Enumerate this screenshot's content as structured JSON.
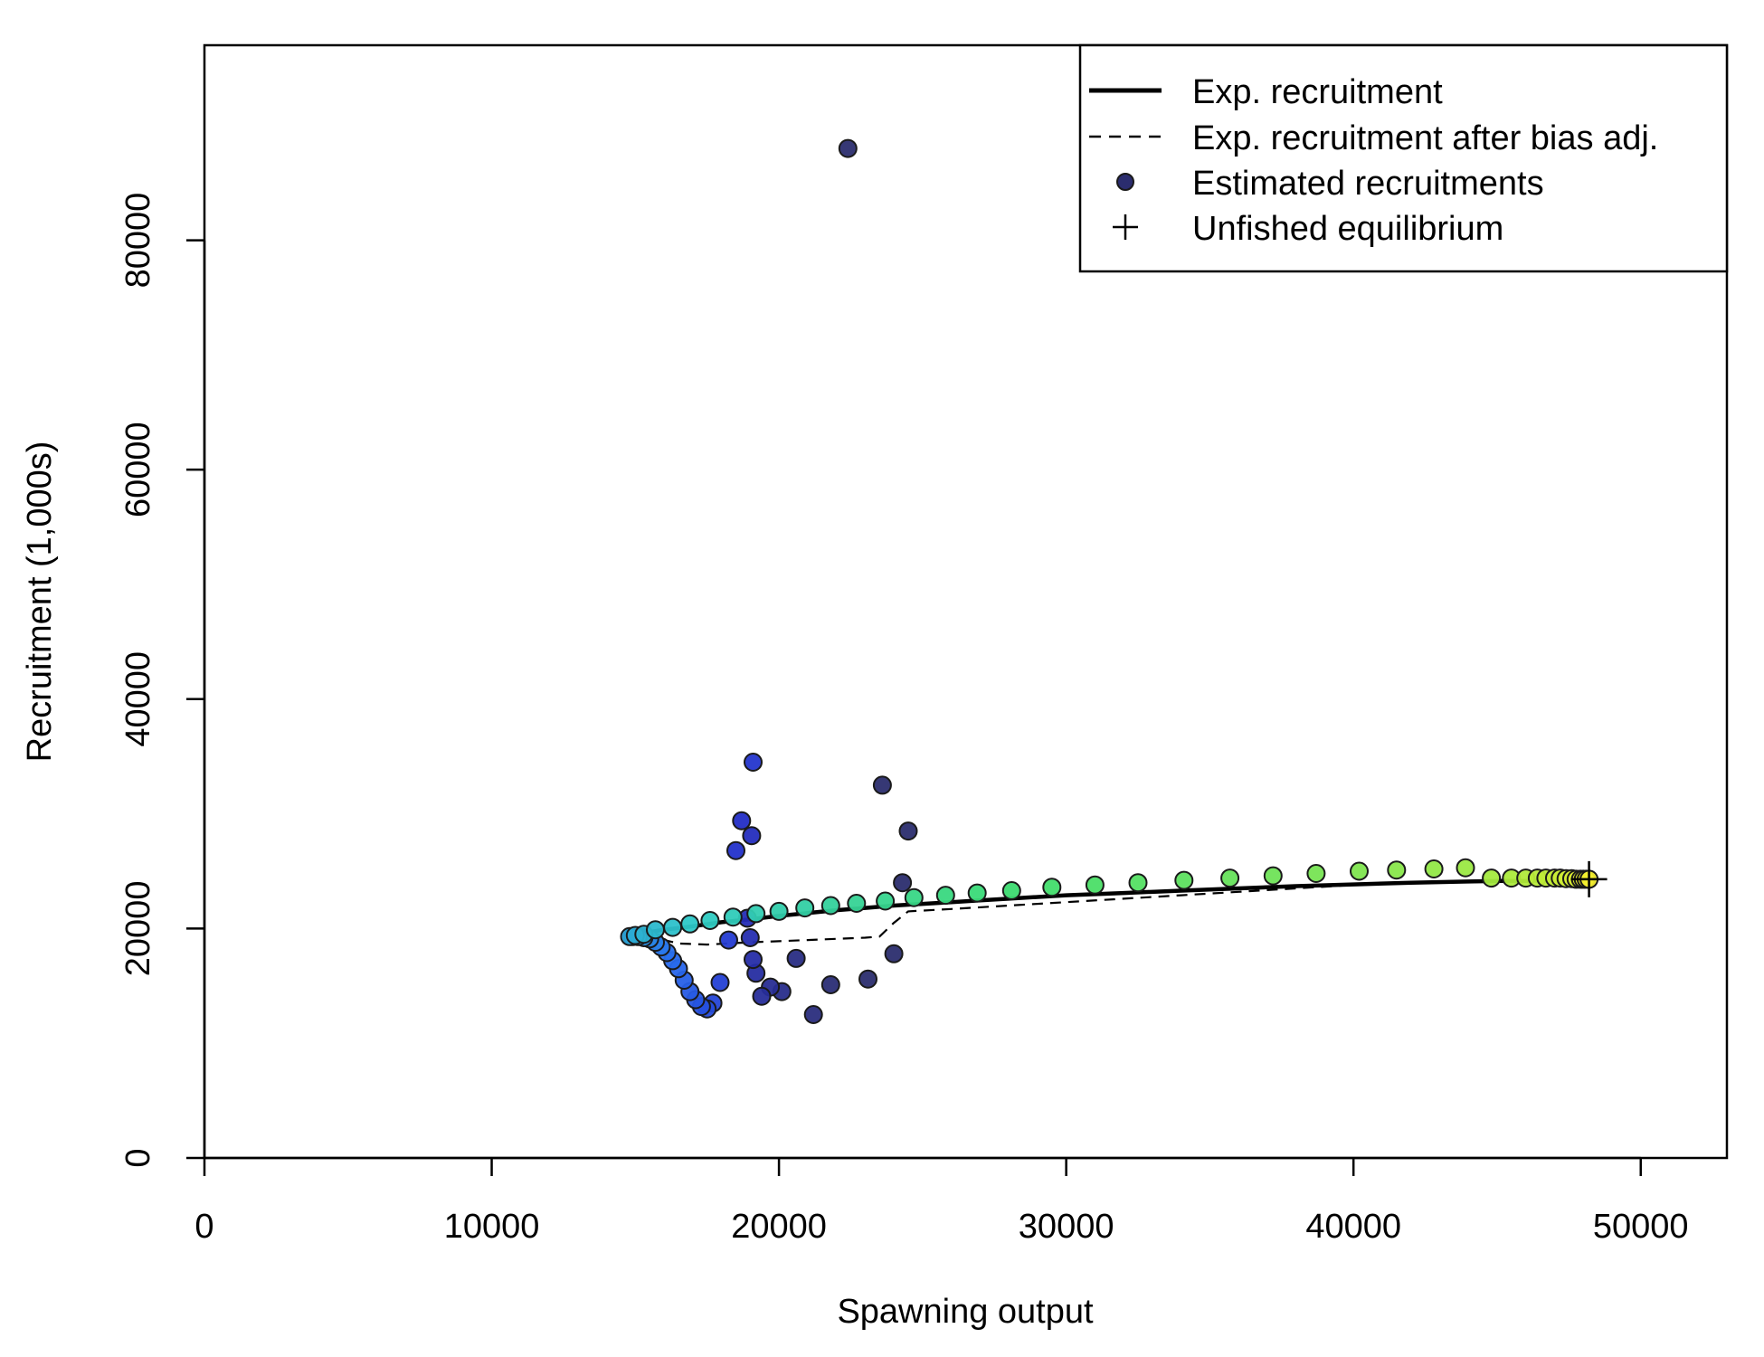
{
  "chart_data": {
    "type": "scatter",
    "title": "",
    "xlabel": "Spawning output",
    "ylabel": "Recruitment (1,000s)",
    "xlim": [
      0,
      53000
    ],
    "ylim": [
      0,
      97000
    ],
    "x_ticks": [
      0,
      10000,
      20000,
      30000,
      40000,
      50000
    ],
    "y_ticks": [
      0,
      20000,
      40000,
      60000,
      80000
    ],
    "grid": false,
    "legend_position": "top-right",
    "legend": [
      {
        "label": "Exp. recruitment",
        "style": "solid-line"
      },
      {
        "label": "Exp. recruitment after bias adj.",
        "style": "dashed-line"
      },
      {
        "label": "Estimated recruitments",
        "style": "point"
      },
      {
        "label": "Unfished equilibrium",
        "style": "plus"
      }
    ],
    "colors": {
      "expected_line": "#000000",
      "early_points": "#2b2d6e",
      "point_ramp_start": "#2b2d6e",
      "point_ramp_end": "#f3ee2f"
    },
    "series": [
      {
        "name": "Exp. recruitment",
        "style": "solid",
        "points": [
          [
            14700,
            19300
          ],
          [
            15000,
            19500
          ],
          [
            15500,
            19700
          ],
          [
            16000,
            19900
          ],
          [
            17000,
            20200
          ],
          [
            18000,
            20550
          ],
          [
            19000,
            20800
          ],
          [
            20000,
            21100
          ],
          [
            21000,
            21350
          ],
          [
            22000,
            21600
          ],
          [
            23000,
            21800
          ],
          [
            24000,
            22000
          ],
          [
            25000,
            22150
          ],
          [
            26000,
            22300
          ],
          [
            27000,
            22450
          ],
          [
            28000,
            22600
          ],
          [
            30000,
            22900
          ],
          [
            32000,
            23100
          ],
          [
            34000,
            23300
          ],
          [
            36000,
            23500
          ],
          [
            38000,
            23700
          ],
          [
            40000,
            23850
          ],
          [
            42000,
            24000
          ],
          [
            44000,
            24100
          ],
          [
            45000,
            24150
          ],
          [
            46000,
            24150
          ],
          [
            47000,
            24200
          ],
          [
            48000,
            24200
          ],
          [
            48200,
            24200
          ]
        ]
      },
      {
        "name": "Exp. recruitment after bias adj.",
        "style": "dashed",
        "points": [
          [
            14700,
            19300
          ],
          [
            15500,
            19300
          ],
          [
            16500,
            18700
          ],
          [
            17500,
            18600
          ],
          [
            19000,
            18800
          ],
          [
            21000,
            19000
          ],
          [
            23000,
            19200
          ],
          [
            23500,
            19300
          ],
          [
            24000,
            20500
          ],
          [
            24500,
            21500
          ],
          [
            26000,
            21700
          ],
          [
            28000,
            22000
          ],
          [
            30000,
            22300
          ],
          [
            32000,
            22600
          ],
          [
            34000,
            22900
          ],
          [
            36000,
            23200
          ],
          [
            38000,
            23500
          ],
          [
            40000,
            23800
          ],
          [
            42000,
            24000
          ],
          [
            44000,
            24100
          ],
          [
            46000,
            24150
          ],
          [
            48200,
            24200
          ]
        ]
      }
    ],
    "estimated_recruitments": {
      "description": "ordered by time; colour ramps from dark blue (early) through blue, cyan, green to yellow (late)",
      "points": [
        [
          22400,
          88000
        ],
        [
          24500,
          28500
        ],
        [
          23600,
          32500
        ],
        [
          24300,
          24000
        ],
        [
          24000,
          17800
        ],
        [
          23100,
          15600
        ],
        [
          21800,
          15100
        ],
        [
          21200,
          12500
        ],
        [
          20600,
          17400
        ],
        [
          20100,
          14500
        ],
        [
          19700,
          14900
        ],
        [
          19400,
          14100
        ],
        [
          19200,
          16100
        ],
        [
          19100,
          17300
        ],
        [
          19000,
          19200
        ],
        [
          18900,
          20900
        ],
        [
          19050,
          28100
        ],
        [
          18700,
          29400
        ],
        [
          18500,
          26800
        ],
        [
          19100,
          34500
        ],
        [
          18250,
          19000
        ],
        [
          17950,
          15300
        ],
        [
          17700,
          13500
        ],
        [
          17500,
          13000
        ],
        [
          17300,
          13200
        ],
        [
          17100,
          13800
        ],
        [
          16900,
          14500
        ],
        [
          16700,
          15500
        ],
        [
          16500,
          16500
        ],
        [
          16300,
          17200
        ],
        [
          16100,
          17900
        ],
        [
          15900,
          18400
        ],
        [
          15700,
          18800
        ],
        [
          15500,
          19100
        ],
        [
          15300,
          19200
        ],
        [
          15100,
          19300
        ],
        [
          14900,
          19300
        ],
        [
          14800,
          19300
        ],
        [
          15000,
          19400
        ],
        [
          15300,
          19500
        ],
        [
          15700,
          19900
        ],
        [
          16300,
          20100
        ],
        [
          16900,
          20400
        ],
        [
          17600,
          20700
        ],
        [
          18400,
          21000
        ],
        [
          19200,
          21300
        ],
        [
          20000,
          21500
        ],
        [
          20900,
          21800
        ],
        [
          21800,
          22000
        ],
        [
          22700,
          22200
        ],
        [
          23700,
          22400
        ],
        [
          24700,
          22700
        ],
        [
          25800,
          22900
        ],
        [
          26900,
          23100
        ],
        [
          28100,
          23300
        ],
        [
          29500,
          23600
        ],
        [
          31000,
          23800
        ],
        [
          32500,
          24000
        ],
        [
          34100,
          24200
        ],
        [
          35700,
          24400
        ],
        [
          37200,
          24600
        ],
        [
          38700,
          24800
        ],
        [
          40200,
          25000
        ],
        [
          41500,
          25100
        ],
        [
          42800,
          25200
        ],
        [
          43900,
          25300
        ],
        [
          44800,
          24400
        ],
        [
          45500,
          24400
        ],
        [
          46000,
          24400
        ],
        [
          46400,
          24400
        ],
        [
          46700,
          24400
        ],
        [
          47000,
          24400
        ],
        [
          47200,
          24400
        ],
        [
          47400,
          24350
        ],
        [
          47600,
          24350
        ],
        [
          47750,
          24300
        ],
        [
          47900,
          24300
        ],
        [
          48000,
          24300
        ],
        [
          48100,
          24300
        ],
        [
          48200,
          24300
        ]
      ]
    },
    "unfished_equilibrium": {
      "x": 48200,
      "y": 24300
    }
  }
}
